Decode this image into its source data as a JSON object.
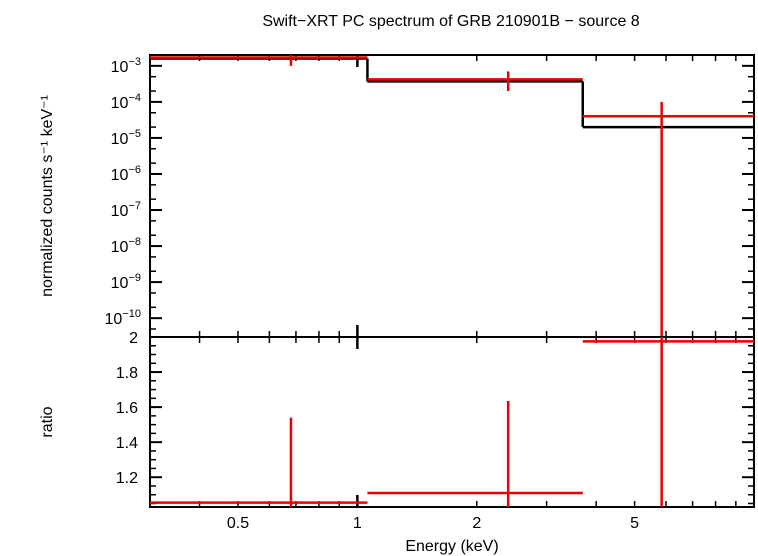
{
  "chart_data": [
    {
      "type": "scatter",
      "panel": "spectrum",
      "title": "Swift−XRT PC spectrum of GRB 210901B − source 8",
      "ylabel": "normalized counts s⁻¹ keV⁻¹",
      "xscale": "log",
      "yscale": "log",
      "xlim": [
        0.3,
        10
      ],
      "ylim": [
        3e-11,
        0.002
      ],
      "yticks": [
        {
          "value": 0.001,
          "base": "10",
          "exp": "−3"
        },
        {
          "value": 0.0001,
          "base": "10",
          "exp": "−4"
        },
        {
          "value": 1e-05,
          "base": "10",
          "exp": "−5"
        },
        {
          "value": 1e-06,
          "base": "10",
          "exp": "−6"
        },
        {
          "value": 1e-07,
          "base": "10",
          "exp": "−7"
        },
        {
          "value": 1e-08,
          "base": "10",
          "exp": "−8"
        },
        {
          "value": 1e-09,
          "base": "10",
          "exp": "−9"
        },
        {
          "value": 1e-10,
          "base": "10",
          "exp": "−10"
        }
      ],
      "data_color": "#ee0000",
      "model_color": "#000000",
      "data": [
        {
          "x": 0.68,
          "xlo": 0.3,
          "xhi": 1.06,
          "y": 0.0017,
          "ylo": 0.001,
          "yhi": 0.0025
        },
        {
          "x": 2.4,
          "xlo": 1.06,
          "xhi": 3.7,
          "y": 0.00042,
          "ylo": 0.0002,
          "yhi": 0.0007
        },
        {
          "x": 5.85,
          "xlo": 3.7,
          "xhi": 10,
          "y": 4e-05,
          "ylo": 3e-11,
          "yhi": 0.0001
        }
      ],
      "model": [
        {
          "xlo": 0.3,
          "xhi": 1.06,
          "y": 0.0016
        },
        {
          "xlo": 1.06,
          "xhi": 3.7,
          "y": 0.00037
        },
        {
          "xlo": 3.7,
          "xhi": 10,
          "y": 2e-05
        }
      ]
    },
    {
      "type": "scatter",
      "panel": "ratio",
      "xlabel": "Energy (keV)",
      "ylabel": "ratio",
      "xscale": "log",
      "xlim": [
        0.3,
        10
      ],
      "ylim": [
        1.03,
        2.0
      ],
      "xticks": [
        {
          "value": 0.5,
          "label": "0.5"
        },
        {
          "value": 1,
          "label": "1"
        },
        {
          "value": 2,
          "label": "2"
        },
        {
          "value": 5,
          "label": "5"
        }
      ],
      "yticks": [
        {
          "value": 1.2,
          "label": "1.2"
        },
        {
          "value": 1.4,
          "label": "1.4"
        },
        {
          "value": 1.6,
          "label": "1.6"
        },
        {
          "value": 1.8,
          "label": "1.8"
        },
        {
          "value": 2,
          "label": "2"
        }
      ],
      "data_color": "#ee0000",
      "data": [
        {
          "x": 0.68,
          "xlo": 0.3,
          "xhi": 1.06,
          "y": 1.055,
          "ylo": 1.03,
          "yhi": 1.54
        },
        {
          "x": 2.4,
          "xlo": 1.06,
          "xhi": 3.7,
          "y": 1.11,
          "ylo": 1.03,
          "yhi": 1.635
        },
        {
          "x": 5.85,
          "xlo": 3.7,
          "xhi": 10,
          "y": 1.975,
          "ylo": 1.03,
          "yhi": 2.0
        }
      ]
    }
  ]
}
